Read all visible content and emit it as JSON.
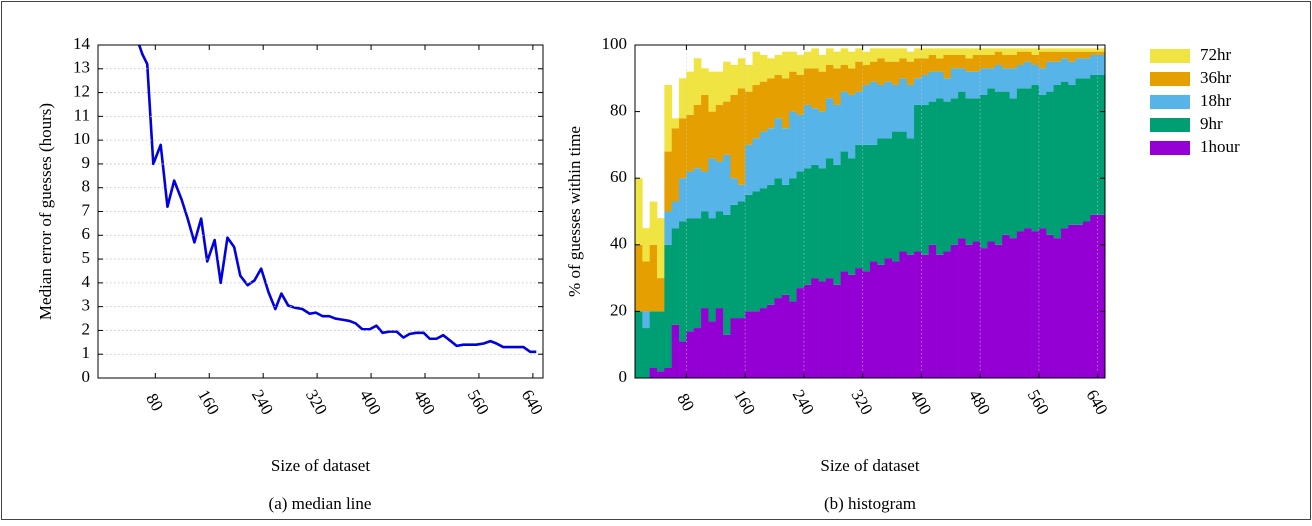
{
  "chart_data": [
    {
      "type": "line",
      "caption": "(a) median line",
      "xlabel": "Size of dataset",
      "ylabel": "Median error of guesses (hours)",
      "xlim": [
        -5,
        655
      ],
      "ylim": [
        0,
        14
      ],
      "xticks": [
        80,
        160,
        240,
        320,
        400,
        480,
        560,
        640
      ],
      "yticks": [
        0,
        1,
        2,
        3,
        4,
        5,
        6,
        7,
        8,
        9,
        10,
        11,
        12,
        13,
        14
      ],
      "grid": "y",
      "color": "#0000e0",
      "x": [
        56,
        61,
        68,
        77,
        88,
        98,
        108,
        119,
        128,
        138,
        148,
        157,
        168,
        177,
        187,
        197,
        206,
        217,
        227,
        237,
        248,
        258,
        267,
        277,
        288,
        298,
        309,
        318,
        328,
        338,
        347,
        358,
        368,
        377,
        387,
        398,
        408,
        417,
        427,
        438,
        448,
        457,
        467,
        478,
        487,
        497,
        507,
        516,
        527,
        537,
        547,
        556,
        567,
        577,
        586,
        596,
        607,
        616,
        626,
        636,
        645
      ],
      "values": [
        14,
        13.6,
        13.2,
        9.0,
        9.8,
        7.2,
        8.3,
        7.5,
        6.7,
        5.7,
        6.7,
        4.9,
        5.8,
        4.0,
        5.9,
        5.5,
        4.3,
        3.9,
        4.1,
        4.6,
        3.6,
        2.9,
        3.55,
        3.05,
        2.95,
        2.9,
        2.7,
        2.75,
        2.6,
        2.6,
        2.5,
        2.45,
        2.4,
        2.3,
        2.05,
        2.05,
        2.2,
        1.9,
        1.95,
        1.95,
        1.7,
        1.85,
        1.9,
        1.9,
        1.65,
        1.65,
        1.8,
        1.6,
        1.35,
        1.4,
        1.4,
        1.4,
        1.45,
        1.55,
        1.45,
        1.3,
        1.3,
        1.3,
        1.3,
        1.1,
        1.1
      ]
    },
    {
      "type": "stacked_histogram",
      "caption": "(b) histogram",
      "xlabel": "Size of dataset",
      "ylabel": "% of guesses within time",
      "xlim": [
        10,
        650
      ],
      "ylim": [
        0,
        100
      ],
      "xticks": [
        80,
        160,
        240,
        320,
        400,
        480,
        560,
        640
      ],
      "yticks": [
        0,
        20,
        40,
        60,
        80,
        100
      ],
      "grid": "x",
      "legend": "outside right",
      "bins": [
        10,
        20,
        30,
        40,
        50,
        60,
        70,
        80,
        90,
        100,
        110,
        120,
        130,
        140,
        150,
        160,
        170,
        180,
        190,
        200,
        210,
        220,
        230,
        240,
        250,
        260,
        270,
        280,
        290,
        300,
        310,
        320,
        330,
        340,
        350,
        360,
        370,
        380,
        390,
        400,
        410,
        420,
        430,
        440,
        450,
        460,
        470,
        480,
        490,
        500,
        510,
        520,
        530,
        540,
        550,
        560,
        570,
        580,
        590,
        600,
        610,
        620,
        630,
        640,
        650
      ],
      "series": [
        {
          "name": "72hr",
          "color": "#f0e442",
          "values": [
            20,
            10,
            13,
            18,
            20,
            3,
            12,
            13,
            14,
            8,
            12,
            10,
            12,
            9,
            9,
            8,
            10,
            8,
            6,
            6,
            8,
            6,
            6,
            5,
            6,
            5,
            5,
            5,
            5,
            5,
            4,
            4,
            4,
            3,
            4,
            4,
            3,
            3,
            3,
            3,
            2,
            3,
            2,
            2,
            2,
            3,
            2,
            2,
            2,
            1,
            2,
            2,
            1,
            1,
            2,
            1,
            1,
            1,
            1,
            1,
            1,
            1,
            1,
            1
          ]
        },
        {
          "name": "36hr",
          "color": "#e69f00",
          "values": [
            20,
            15,
            20,
            10,
            18,
            22,
            18,
            17,
            19,
            23,
            14,
            17,
            16,
            25,
            29,
            16,
            16,
            15,
            15,
            13,
            15,
            12,
            12,
            11,
            12,
            12,
            10,
            11,
            8,
            8,
            9,
            6,
            6,
            8,
            6,
            7,
            6,
            7,
            6,
            5,
            5,
            4,
            7,
            4,
            4,
            4,
            5,
            4,
            4,
            4,
            4,
            4,
            4,
            3,
            3,
            5,
            3,
            3,
            2,
            3,
            2,
            2,
            1,
            1
          ]
        },
        {
          "name": "18hr",
          "color": "#56b4e9",
          "values": [
            0,
            5,
            0,
            0,
            10,
            8,
            13,
            14,
            15,
            12,
            18,
            15,
            18,
            8,
            5,
            15,
            16,
            17,
            17,
            18,
            17,
            20,
            17,
            19,
            17,
            17,
            18,
            18,
            18,
            19,
            16,
            18,
            19,
            16,
            17,
            14,
            16,
            16,
            8,
            9,
            9,
            8,
            7,
            9,
            7,
            8,
            8,
            8,
            6,
            8,
            7,
            9,
            7,
            8,
            6,
            8,
            9,
            7,
            7,
            7,
            6,
            6,
            6,
            6
          ]
        },
        {
          "name": "9hr",
          "color": "#009e73",
          "values": [
            20,
            15,
            17,
            18,
            37,
            29,
            36,
            34,
            33,
            29,
            31,
            29,
            36,
            34,
            35,
            35,
            36,
            36,
            36,
            36,
            33,
            37,
            35,
            35,
            34,
            34,
            36,
            36,
            36,
            35,
            37,
            38,
            35,
            38,
            36,
            39,
            36,
            35,
            44,
            45,
            43,
            47,
            45,
            44,
            44,
            44,
            43,
            46,
            46,
            46,
            43,
            42,
            43,
            42,
            44,
            40,
            43,
            46,
            44,
            42,
            44,
            43,
            42,
            42
          ]
        },
        {
          "name": "1hour",
          "color": "#9400d3",
          "values": [
            0,
            0,
            3,
            2,
            3,
            16,
            11,
            14,
            15,
            21,
            17,
            21,
            13,
            18,
            18,
            20,
            20,
            21,
            22,
            24,
            25,
            23,
            27,
            28,
            30,
            29,
            30,
            28,
            32,
            31,
            33,
            32,
            35,
            34,
            36,
            35,
            38,
            37,
            38,
            37,
            40,
            37,
            38,
            40,
            42,
            40,
            41,
            39,
            41,
            40,
            43,
            42,
            44,
            45,
            44,
            45,
            43,
            42,
            45,
            46,
            46,
            47,
            49,
            49
          ]
        }
      ]
    }
  ]
}
